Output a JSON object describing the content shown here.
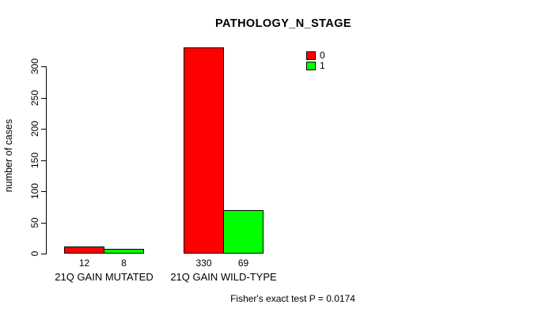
{
  "title": "PATHOLOGY_N_STAGE",
  "footer": "Fisher's exact test P = 0.0174",
  "chart_data": {
    "type": "bar",
    "title": "PATHOLOGY_N_STAGE",
    "xlabel": "",
    "ylabel": "number of cases",
    "categories": [
      "21Q GAIN MUTATED",
      "21Q GAIN WILD-TYPE"
    ],
    "series": [
      {
        "name": "0",
        "color": "#FF0000",
        "values": [
          12,
          330
        ]
      },
      {
        "name": "1",
        "color": "#00FF00",
        "values": [
          8,
          69
        ]
      }
    ],
    "bar_value_labels": [
      [
        "12",
        "330"
      ],
      [
        "8",
        "69"
      ]
    ],
    "yticks": [
      0,
      50,
      100,
      150,
      200,
      250,
      300
    ],
    "ylim": [
      0,
      330
    ],
    "grid": false,
    "legend_position": "top-right",
    "annotation": "Fisher's exact test P = 0.0174"
  }
}
